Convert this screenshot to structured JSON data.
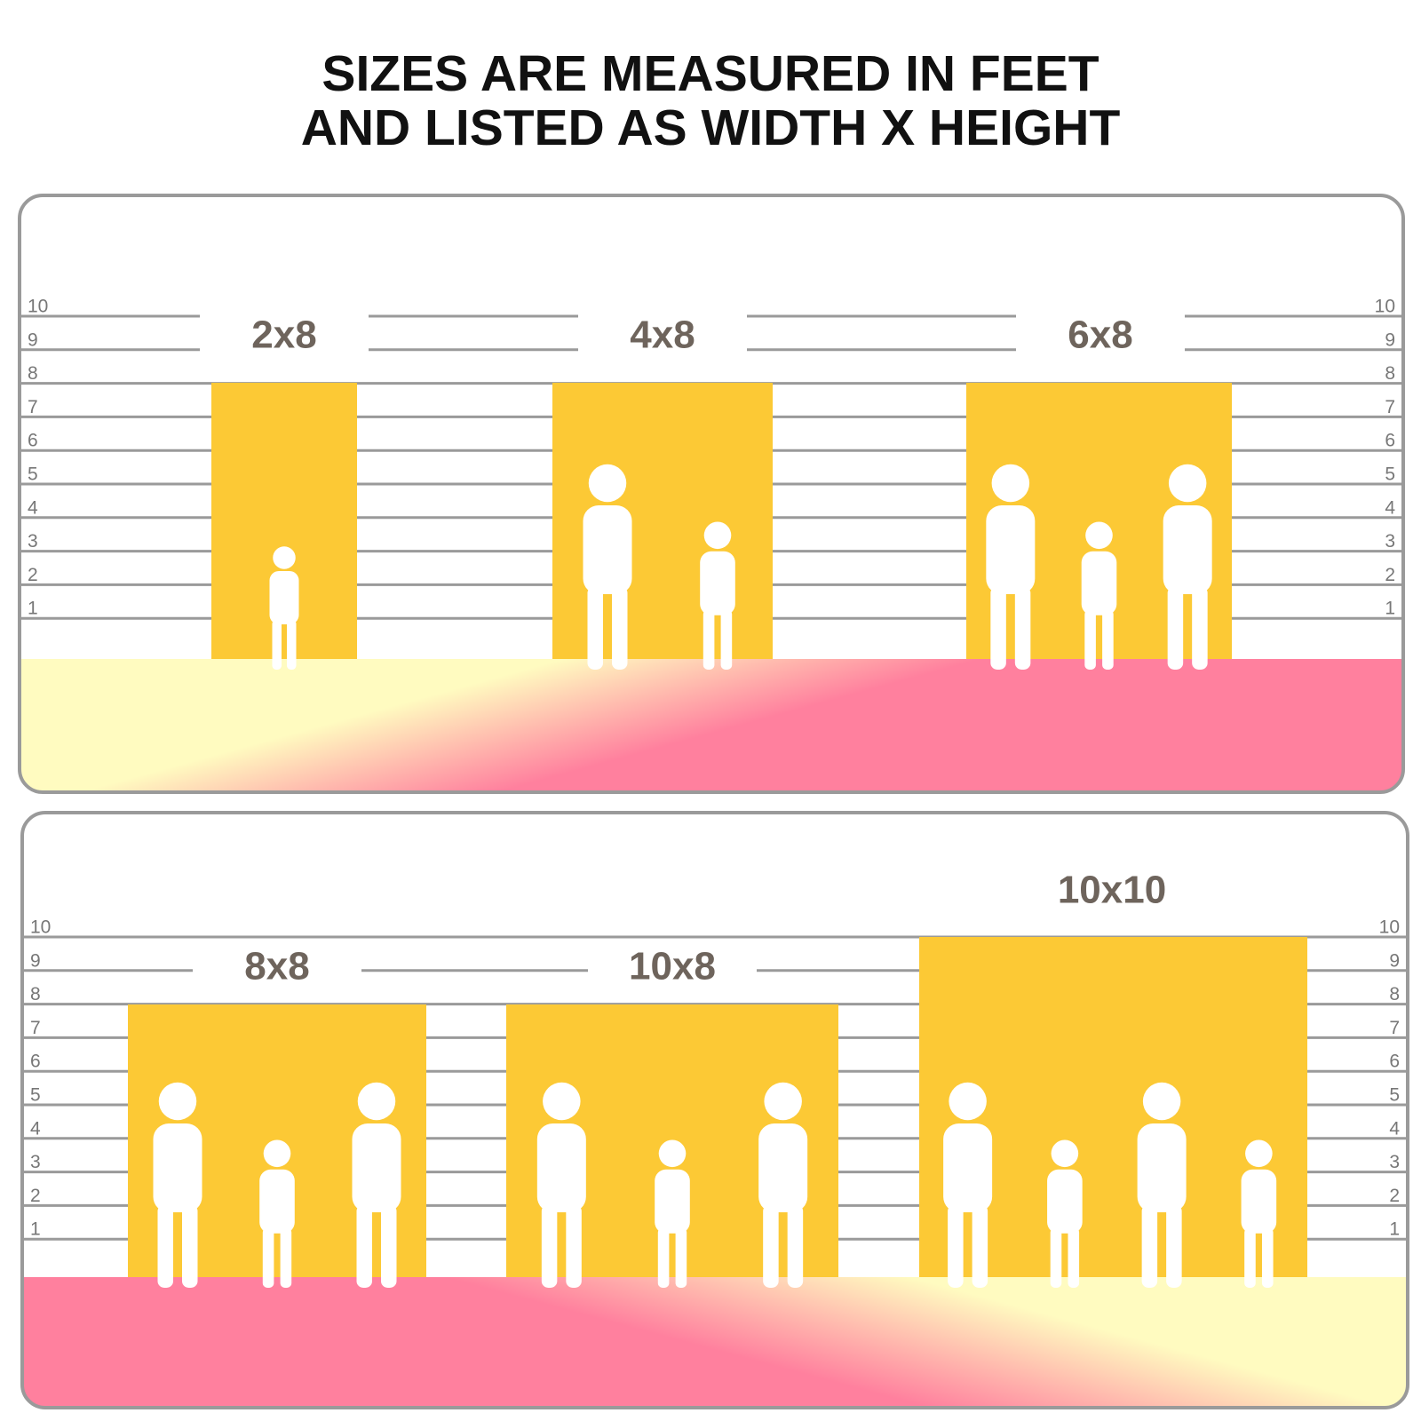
{
  "title": {
    "line1": "SIZES ARE MEASURED IN FEET",
    "line2": "AND LISTED AS WIDTH X HEIGHT"
  },
  "panels": [
    {
      "scale": [
        10,
        9,
        8,
        7,
        6,
        5,
        4,
        3,
        2,
        1
      ],
      "backdrops": [
        {
          "label": "2x8"
        },
        {
          "label": "4x8"
        },
        {
          "label": "6x8"
        }
      ]
    },
    {
      "scale": [
        10,
        9,
        8,
        7,
        6,
        5,
        4,
        3,
        2,
        1
      ],
      "backdrops": [
        {
          "label": "8x8"
        },
        {
          "label": "10x8"
        },
        {
          "label": "10x10"
        }
      ]
    }
  ]
}
